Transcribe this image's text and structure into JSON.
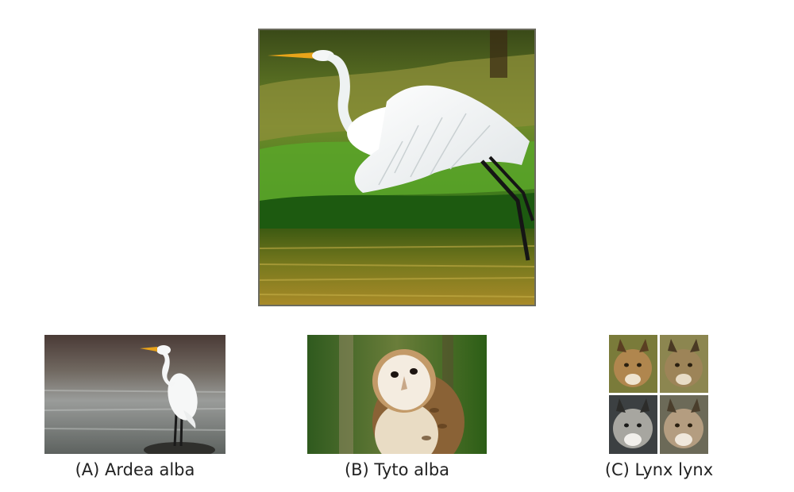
{
  "main_image": {
    "icon": "egret-in-flight-photo"
  },
  "options": [
    {
      "label": "(A) Ardea alba",
      "icon": "great-egret-photo"
    },
    {
      "label": "(B) Tyto alba",
      "icon": "barn-owl-photo"
    },
    {
      "label": "(C) Lynx lynx",
      "icon": "lynx-faces-photo"
    }
  ]
}
